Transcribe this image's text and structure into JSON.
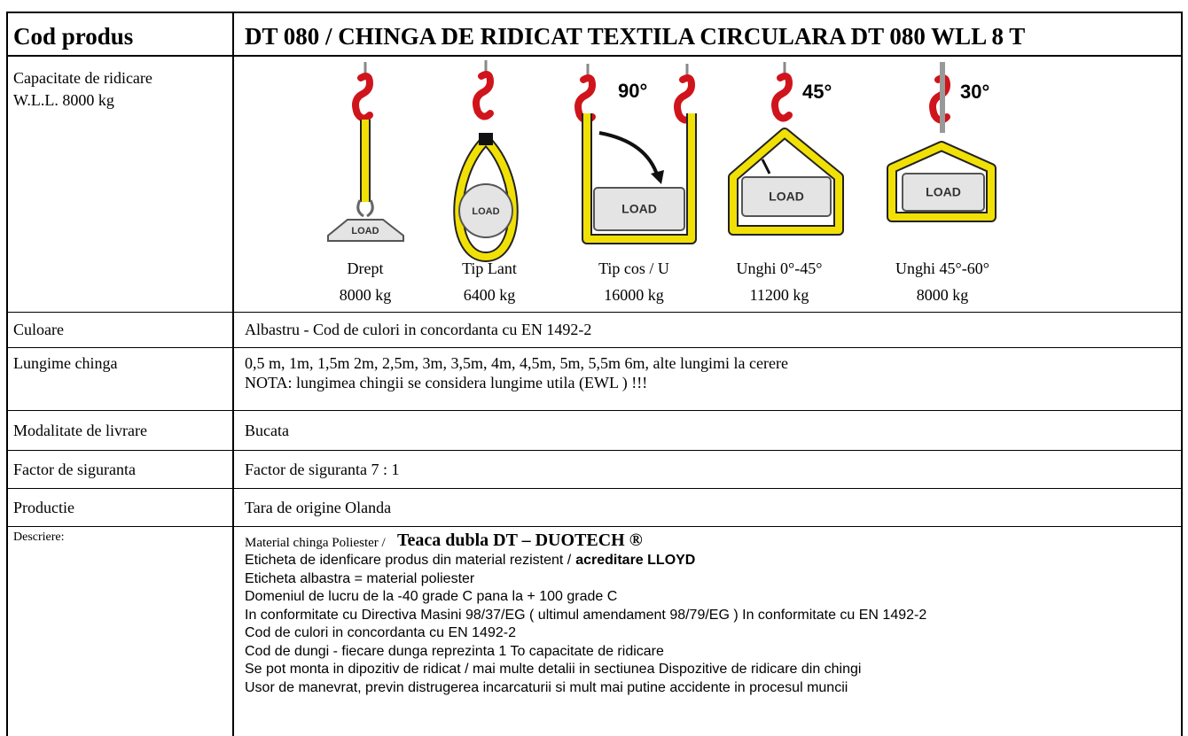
{
  "header": {
    "label": "Cod produs",
    "title": "DT 080 / CHINGA DE RIDICAT TEXTILA CIRCULARA DT 080 WLL 8 T"
  },
  "capacity": {
    "label_lines": [
      "Capacitate de ridicare",
      "W.L.L. 8000 kg"
    ],
    "configs": [
      {
        "name": "Drept",
        "load": "8000 kg",
        "tag": "LOAD"
      },
      {
        "name": "Tip Lant",
        "load": "6400 kg",
        "tag": "LOAD"
      },
      {
        "name": "Tip cos / U",
        "load": "16000 kg",
        "tag": "LOAD",
        "angle": "90°"
      },
      {
        "name": "Unghi 0°-45°",
        "load": "11200 kg",
        "tag": "LOAD",
        "angle": "45°"
      },
      {
        "name": "Unghi 45°-60°",
        "load": "8000 kg",
        "tag": "LOAD",
        "angle": "30°"
      }
    ]
  },
  "rows": [
    {
      "label": "Culoare",
      "lines": [
        "Albastru - Cod de culori in concordanta cu EN 1492-2"
      ]
    },
    {
      "label": "Lungime chinga",
      "lines": [
        "0,5 m, 1m, 1,5m 2m, 2,5m, 3m, 3,5m, 4m, 4,5m, 5m, 5,5m 6m,  alte lungimi la cerere",
        "NOTA: lungimea chingii se considera lungime utila (EWL ) !!!"
      ]
    },
    {
      "label": "Modalitate de livrare",
      "lines": [
        "Bucata"
      ]
    },
    {
      "label": "Factor de siguranta",
      "lines": [
        "Factor de siguranta 7 : 1"
      ]
    },
    {
      "label": "Productie",
      "lines": [
        "Tara de origine Olanda"
      ]
    }
  ],
  "description": {
    "label": "Descriere:",
    "intro": "Material chinga Poliester /",
    "brand": "Teaca dubla DT – DUOTECH ®",
    "label_line": {
      "text": "Eticheta de idenficare produs din material rezistent /",
      "strong": "acreditare LLOYD"
    },
    "lines": [
      "Eticheta albastra = material poliester",
      "Domeniul de lucru de la -40 grade C pana la + 100 grade C",
      "In conformitate cu Directiva Masini 98/37/EG ( ultimul amendament 98/79/EG ) In conformitate cu EN 1492-2",
      "Cod de culori in concordanta cu EN 1492-2",
      "Cod de dungi - fiecare dunga reprezinta 1 To capacitate de ridicare",
      "Se pot monta in dipozitiv de ridicat / mai multe detalii in sectiunea Dispozitive de ridicare din chingi",
      "Usor de manevrat, previn distrugerea incarcaturii si mult mai putine accidente in procesul muncii"
    ]
  }
}
